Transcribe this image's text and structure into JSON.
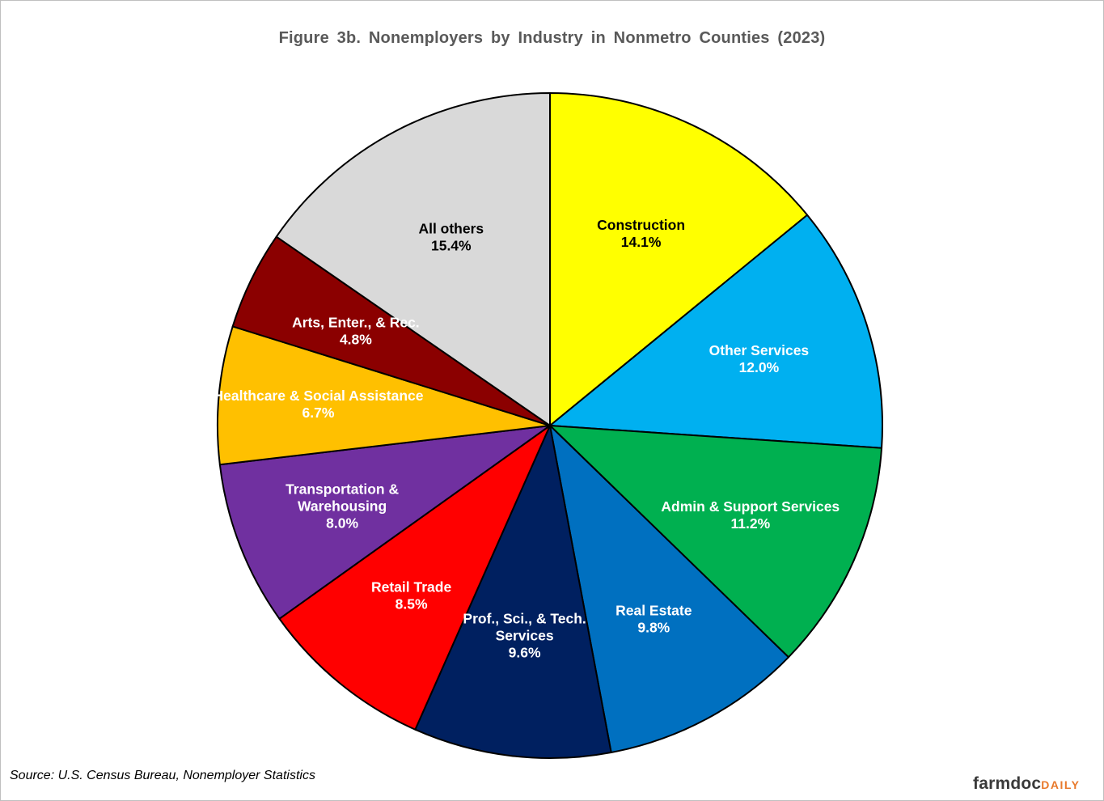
{
  "chart_data": {
    "type": "pie",
    "title": "Figure  3b. Nonemployers  by  Industry  in  Nonmetro  Counties  (2023)",
    "slices": [
      {
        "lines": [
          "Construction"
        ],
        "value": 14.1,
        "pct_label": "14.1%",
        "color": "#ffff00",
        "text_color": "#000000"
      },
      {
        "lines": [
          "Other Services"
        ],
        "value": 12.0,
        "pct_label": "12.0%",
        "color": "#00b0f0",
        "text_color": "#ffffff"
      },
      {
        "lines": [
          "Admin & Support Services"
        ],
        "value": 11.2,
        "pct_label": "11.2%",
        "color": "#00b050",
        "text_color": "#ffffff"
      },
      {
        "lines": [
          "Real Estate"
        ],
        "value": 9.8,
        "pct_label": "9.8%",
        "color": "#0070c0",
        "text_color": "#ffffff"
      },
      {
        "lines": [
          "Prof., Sci., & Tech.",
          "Services"
        ],
        "value": 9.6,
        "pct_label": "9.6%",
        "color": "#002060",
        "text_color": "#ffffff"
      },
      {
        "lines": [
          "Retail Trade"
        ],
        "value": 8.5,
        "pct_label": "8.5%",
        "color": "#ff0000",
        "text_color": "#ffffff"
      },
      {
        "lines": [
          "Transportation &",
          "Warehousing"
        ],
        "value": 8.0,
        "pct_label": "8.0%",
        "color": "#7030a0",
        "text_color": "#ffffff"
      },
      {
        "lines": [
          "Healthcare & Social Assistance"
        ],
        "value": 6.7,
        "pct_label": "6.7%",
        "color": "#ffc000",
        "text_color": "#ffffff"
      },
      {
        "lines": [
          "Arts, Enter., & Rec."
        ],
        "value": 4.8,
        "pct_label": "4.8%",
        "color": "#8b0000",
        "text_color": "#ffffff"
      },
      {
        "lines": [
          "All others"
        ],
        "value": 15.4,
        "pct_label": "15.4%",
        "color": "#d9d9d9",
        "text_color": "#000000"
      }
    ],
    "source": "Source: U.S. Census Bureau, Nonemployer Statistics"
  },
  "branding": {
    "logo_main": "farmdoc",
    "logo_sub": "DAILY"
  }
}
